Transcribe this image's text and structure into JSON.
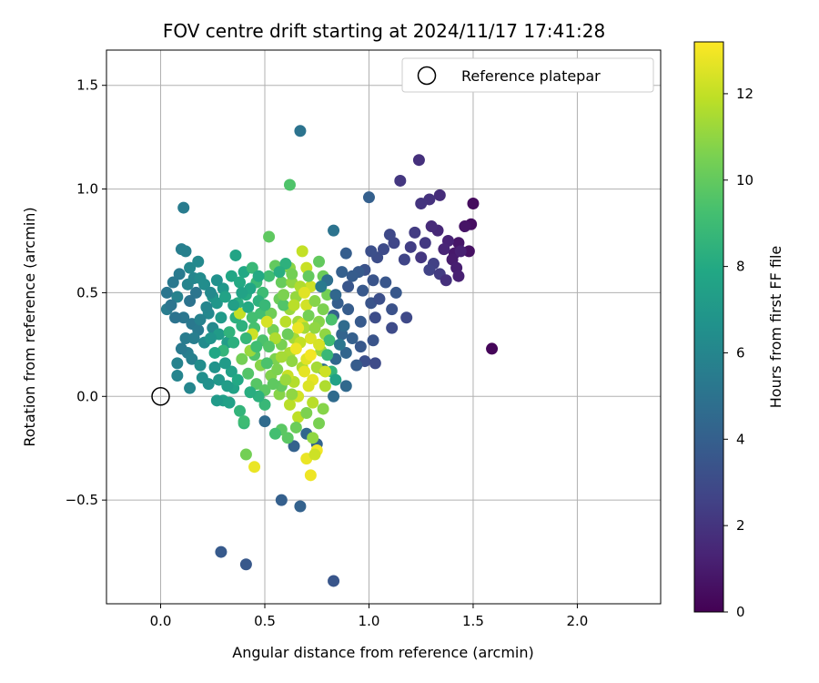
{
  "chart_data": {
    "type": "scatter",
    "title": "FOV centre drift starting at 2024/11/17 17:41:28",
    "xlabel": "Angular distance from reference (arcmin)",
    "ylabel": "Rotation from reference (arcmin)",
    "xlim": [
      -0.26,
      2.4
    ],
    "ylim": [
      -1.0,
      1.67
    ],
    "xticks": [
      0.0,
      0.5,
      1.0,
      1.5,
      2.0
    ],
    "xtick_labels": [
      "0.0",
      "0.5",
      "1.0",
      "1.5",
      "2.0"
    ],
    "yticks": [
      -0.5,
      0.0,
      0.5,
      1.0,
      1.5
    ],
    "ytick_labels": [
      "−0.5",
      "0.0",
      "0.5",
      "1.0",
      "1.5"
    ],
    "grid": true,
    "legend": {
      "position": "upper-right",
      "entries": [
        "Reference platepar"
      ]
    },
    "reference_point": {
      "x": 0.0,
      "y": 0.0,
      "label": "Reference platepar",
      "marker": "open-circle"
    },
    "colorbar": {
      "label": "Hours from first FF file",
      "range": [
        0,
        13.2
      ],
      "ticks": [
        0,
        2,
        4,
        6,
        8,
        10,
        12
      ],
      "tick_labels": [
        "0",
        "2",
        "4",
        "6",
        "8",
        "10",
        "12"
      ],
      "colormap": "viridis"
    },
    "points": [
      [
        1.59,
        0.23,
        0.2
      ],
      [
        1.5,
        0.93,
        0.4
      ],
      [
        1.49,
        0.83,
        0.5
      ],
      [
        1.46,
        0.82,
        0.7
      ],
      [
        1.43,
        0.74,
        0.8
      ],
      [
        1.48,
        0.7,
        0.6
      ],
      [
        1.41,
        0.69,
        0.9
      ],
      [
        1.4,
        0.66,
        1.0
      ],
      [
        1.42,
        0.62,
        1.1
      ],
      [
        1.44,
        0.7,
        1.2
      ],
      [
        1.38,
        0.75,
        1.3
      ],
      [
        1.36,
        0.71,
        1.4
      ],
      [
        1.33,
        0.8,
        1.5
      ],
      [
        1.3,
        0.82,
        1.6
      ],
      [
        1.24,
        1.14,
        1.8
      ],
      [
        1.34,
        0.97,
        1.7
      ],
      [
        1.29,
        0.95,
        1.9
      ],
      [
        1.25,
        0.93,
        2.0
      ],
      [
        1.15,
        1.04,
        2.1
      ],
      [
        1.27,
        0.74,
        2.2
      ],
      [
        1.22,
        0.79,
        2.3
      ],
      [
        1.2,
        0.72,
        2.4
      ],
      [
        1.31,
        0.64,
        2.5
      ],
      [
        1.29,
        0.61,
        2.6
      ],
      [
        1.34,
        0.59,
        2.3
      ],
      [
        1.43,
        0.58,
        1.2
      ],
      [
        1.25,
        0.67,
        2.1
      ],
      [
        1.37,
        0.56,
        1.8
      ],
      [
        1.17,
        0.66,
        2.7
      ],
      [
        1.12,
        0.74,
        2.8
      ],
      [
        1.1,
        0.78,
        2.9
      ],
      [
        1.07,
        0.71,
        3.0
      ],
      [
        1.04,
        0.67,
        3.1
      ],
      [
        1.01,
        0.7,
        3.2
      ],
      [
        0.98,
        0.61,
        3.3
      ],
      [
        1.02,
        0.56,
        3.4
      ],
      [
        1.08,
        0.55,
        3.5
      ],
      [
        1.13,
        0.5,
        3.6
      ],
      [
        0.95,
        0.6,
        3.7
      ],
      [
        0.92,
        0.58,
        3.8
      ],
      [
        0.89,
        0.69,
        3.9
      ],
      [
        0.87,
        0.6,
        4.0
      ],
      [
        0.9,
        0.53,
        3.5
      ],
      [
        0.97,
        0.51,
        3.6
      ],
      [
        1.01,
        0.45,
        3.4
      ],
      [
        1.05,
        0.47,
        3.2
      ],
      [
        1.11,
        0.42,
        3.3
      ],
      [
        1.18,
        0.38,
        2.9
      ],
      [
        1.11,
        0.33,
        3.0
      ],
      [
        1.03,
        0.38,
        3.1
      ],
      [
        0.96,
        0.36,
        3.7
      ],
      [
        0.9,
        0.42,
        3.8
      ],
      [
        0.85,
        0.45,
        3.9
      ],
      [
        0.83,
        0.39,
        4.1
      ],
      [
        0.87,
        0.3,
        4.2
      ],
      [
        0.92,
        0.28,
        4.0
      ],
      [
        0.96,
        0.24,
        3.6
      ],
      [
        1.02,
        0.27,
        3.4
      ],
      [
        0.98,
        0.17,
        3.2
      ],
      [
        1.03,
        0.16,
        3.0
      ],
      [
        0.94,
        0.15,
        3.8
      ],
      [
        0.89,
        0.21,
        4.3
      ],
      [
        0.84,
        0.18,
        4.4
      ],
      [
        0.89,
        0.05,
        4.5
      ],
      [
        0.83,
        0.0,
        4.6
      ],
      [
        0.78,
        0.13,
        4.7
      ],
      [
        0.75,
        -0.23,
        4.2
      ],
      [
        0.7,
        -0.18,
        4.4
      ],
      [
        0.64,
        -0.24,
        4.1
      ],
      [
        0.58,
        -0.5,
        4.0
      ],
      [
        0.67,
        -0.53,
        4.1
      ],
      [
        0.5,
        -0.12,
        4.6
      ],
      [
        0.83,
        -0.89,
        3.5
      ],
      [
        0.41,
        -0.81,
        3.6
      ],
      [
        0.29,
        -0.75,
        3.7
      ],
      [
        0.67,
        1.28,
        5.0
      ],
      [
        1.0,
        0.96,
        4.0
      ],
      [
        0.83,
        0.8,
        5.0
      ],
      [
        0.11,
        0.91,
        5.5
      ],
      [
        0.1,
        0.71,
        5.6
      ],
      [
        0.12,
        0.7,
        5.7
      ],
      [
        0.09,
        0.59,
        5.4
      ],
      [
        0.06,
        0.55,
        5.3
      ],
      [
        0.03,
        0.5,
        5.2
      ],
      [
        0.03,
        0.42,
        5.5
      ],
      [
        0.08,
        0.48,
        5.8
      ],
      [
        0.13,
        0.54,
        5.9
      ],
      [
        0.16,
        0.57,
        6.0
      ],
      [
        0.14,
        0.62,
        6.1
      ],
      [
        0.18,
        0.65,
        6.2
      ],
      [
        0.19,
        0.57,
        6.3
      ],
      [
        0.21,
        0.54,
        6.4
      ],
      [
        0.17,
        0.5,
        5.1
      ],
      [
        0.14,
        0.46,
        5.0
      ],
      [
        0.11,
        0.38,
        5.2
      ],
      [
        0.15,
        0.35,
        5.3
      ],
      [
        0.18,
        0.32,
        5.4
      ],
      [
        0.12,
        0.28,
        5.5
      ],
      [
        0.13,
        0.21,
        5.6
      ],
      [
        0.15,
        0.18,
        5.7
      ],
      [
        0.08,
        0.16,
        5.8
      ],
      [
        0.08,
        0.1,
        5.9
      ],
      [
        0.14,
        0.04,
        6.0
      ],
      [
        0.23,
        0.4,
        6.1
      ],
      [
        0.25,
        0.33,
        6.2
      ],
      [
        0.21,
        0.26,
        6.3
      ],
      [
        0.19,
        0.15,
        6.4
      ],
      [
        0.2,
        0.09,
        6.5
      ],
      [
        0.23,
        0.06,
        6.6
      ],
      [
        0.26,
        0.14,
        6.7
      ],
      [
        0.25,
        0.48,
        6.8
      ],
      [
        0.27,
        0.45,
        6.9
      ],
      [
        0.3,
        0.52,
        7.0
      ],
      [
        0.29,
        0.38,
        7.1
      ],
      [
        0.28,
        0.3,
        7.2
      ],
      [
        0.32,
        0.26,
        7.3
      ],
      [
        0.3,
        -0.02,
        7.4
      ],
      [
        0.33,
        -0.03,
        7.5
      ],
      [
        0.35,
        0.04,
        7.6
      ],
      [
        0.36,
        0.68,
        7.7
      ],
      [
        0.34,
        0.58,
        7.8
      ],
      [
        0.4,
        0.6,
        7.9
      ],
      [
        0.38,
        0.55,
        8.0
      ],
      [
        0.41,
        0.49,
        8.1
      ],
      [
        0.37,
        0.45,
        8.2
      ],
      [
        0.36,
        0.38,
        8.3
      ],
      [
        0.39,
        0.34,
        8.4
      ],
      [
        0.33,
        0.31,
        8.5
      ],
      [
        0.38,
        -0.07,
        8.6
      ],
      [
        0.4,
        -0.13,
        8.7
      ],
      [
        0.44,
        0.62,
        8.8
      ],
      [
        0.46,
        0.55,
        8.9
      ],
      [
        0.49,
        0.5,
        9.0
      ],
      [
        0.52,
        0.58,
        9.1
      ],
      [
        0.48,
        0.4,
        9.2
      ],
      [
        0.45,
        0.33,
        9.3
      ],
      [
        0.49,
        0.27,
        9.4
      ],
      [
        0.45,
        0.2,
        9.5
      ],
      [
        0.42,
        0.11,
        9.6
      ],
      [
        0.46,
        0.06,
        9.7
      ],
      [
        0.5,
        0.03,
        9.8
      ],
      [
        0.52,
        0.77,
        9.9
      ],
      [
        0.55,
        0.63,
        10.0
      ],
      [
        0.58,
        0.55,
        10.1
      ],
      [
        0.57,
        0.47,
        10.2
      ],
      [
        0.53,
        0.4,
        10.3
      ],
      [
        0.54,
        0.32,
        10.4
      ],
      [
        0.58,
        0.25,
        10.5
      ],
      [
        0.55,
        0.18,
        10.6
      ],
      [
        0.53,
        0.1,
        10.7
      ],
      [
        0.57,
        0.01,
        10.8
      ],
      [
        0.62,
        1.02,
        9.5
      ],
      [
        0.62,
        0.62,
        10.9
      ],
      [
        0.63,
        0.55,
        11.0
      ],
      [
        0.65,
        0.48,
        11.1
      ],
      [
        0.62,
        0.42,
        11.2
      ],
      [
        0.66,
        0.36,
        11.3
      ],
      [
        0.64,
        0.28,
        11.4
      ],
      [
        0.62,
        0.21,
        11.5
      ],
      [
        0.68,
        0.14,
        11.6
      ],
      [
        0.64,
        0.07,
        11.7
      ],
      [
        0.62,
        -0.04,
        11.8
      ],
      [
        0.66,
        -0.1,
        11.9
      ],
      [
        0.68,
        0.7,
        12.0
      ],
      [
        0.7,
        0.62,
        12.1
      ],
      [
        0.72,
        0.53,
        12.2
      ],
      [
        0.7,
        0.44,
        12.3
      ],
      [
        0.68,
        0.35,
        12.4
      ],
      [
        0.72,
        0.28,
        12.5
      ],
      [
        0.7,
        0.18,
        12.6
      ],
      [
        0.73,
        0.08,
        12.7
      ],
      [
        0.7,
        -0.3,
        12.8
      ],
      [
        0.72,
        -0.38,
        12.9
      ],
      [
        0.75,
        -0.26,
        13.0
      ],
      [
        0.74,
        -0.28,
        12.2
      ],
      [
        0.76,
        0.65,
        10.0
      ],
      [
        0.78,
        0.58,
        10.2
      ],
      [
        0.8,
        0.49,
        10.4
      ],
      [
        0.78,
        0.42,
        10.6
      ],
      [
        0.76,
        0.36,
        10.8
      ],
      [
        0.79,
        0.3,
        11.0
      ],
      [
        0.77,
        0.22,
        11.2
      ],
      [
        0.75,
        0.14,
        11.4
      ],
      [
        0.79,
        0.05,
        11.6
      ],
      [
        0.73,
        -0.03,
        11.8
      ],
      [
        0.76,
        -0.13,
        10.5
      ],
      [
        0.78,
        -0.06,
        10.8
      ],
      [
        0.73,
        -0.2,
        11.0
      ],
      [
        0.58,
        -0.16,
        9.8
      ],
      [
        0.65,
        -0.15,
        10.2
      ],
      [
        0.58,
        0.05,
        10.0
      ],
      [
        0.41,
        -0.28,
        10.4
      ],
      [
        0.45,
        -0.34,
        12.8
      ],
      [
        0.4,
        -0.12,
        9.0
      ],
      [
        0.38,
        0.4,
        12.0
      ],
      [
        0.44,
        0.3,
        12.2
      ],
      [
        0.51,
        0.36,
        12.4
      ],
      [
        0.55,
        0.28,
        11.6
      ],
      [
        0.6,
        0.36,
        11.8
      ],
      [
        0.67,
        0.26,
        12.0
      ],
      [
        0.61,
        0.1,
        12.1
      ],
      [
        0.66,
        0.0,
        12.3
      ],
      [
        0.71,
        0.05,
        12.5
      ],
      [
        0.69,
        0.33,
        11.4
      ],
      [
        0.63,
        0.17,
        11.0
      ],
      [
        0.56,
        0.13,
        10.6
      ],
      [
        0.48,
        0.15,
        10.8
      ],
      [
        0.43,
        0.22,
        11.2
      ],
      [
        0.39,
        0.18,
        10.4
      ],
      [
        0.3,
        0.22,
        8.6
      ],
      [
        0.26,
        0.21,
        7.8
      ],
      [
        0.34,
        0.12,
        7.5
      ],
      [
        0.28,
        0.08,
        7.0
      ],
      [
        0.31,
        0.16,
        7.2
      ],
      [
        0.24,
        0.28,
        6.8
      ],
      [
        0.35,
        0.44,
        7.4
      ],
      [
        0.31,
        0.48,
        7.6
      ],
      [
        0.42,
        0.43,
        8.0
      ],
      [
        0.47,
        0.46,
        8.4
      ],
      [
        0.5,
        0.44,
        8.8
      ],
      [
        0.44,
        0.38,
        9.2
      ],
      [
        0.52,
        0.24,
        9.6
      ],
      [
        0.59,
        0.44,
        9.6
      ],
      [
        0.61,
        0.3,
        10.2
      ],
      [
        0.71,
        0.39,
        10.4
      ],
      [
        0.74,
        0.46,
        10.8
      ],
      [
        0.82,
        0.37,
        9.4
      ],
      [
        0.81,
        0.27,
        9.0
      ],
      [
        0.8,
        0.2,
        8.8
      ],
      [
        0.82,
        0.12,
        8.6
      ],
      [
        0.84,
        0.08,
        7.6
      ],
      [
        0.86,
        0.25,
        5.2
      ],
      [
        0.88,
        0.34,
        4.6
      ],
      [
        0.84,
        0.49,
        4.4
      ],
      [
        0.8,
        0.56,
        4.8
      ],
      [
        0.77,
        0.53,
        5.4
      ],
      [
        0.6,
        0.64,
        8.4
      ],
      [
        0.57,
        0.6,
        8.2
      ],
      [
        0.47,
        0.58,
        8.0
      ],
      [
        0.43,
        0.52,
        7.8
      ],
      [
        0.39,
        0.5,
        7.6
      ],
      [
        0.27,
        0.56,
        6.6
      ],
      [
        0.24,
        0.5,
        6.2
      ],
      [
        0.22,
        0.43,
        6.0
      ],
      [
        0.19,
        0.37,
        5.8
      ],
      [
        0.16,
        0.28,
        5.6
      ],
      [
        0.1,
        0.23,
        5.4
      ],
      [
        0.07,
        0.38,
        5.0
      ],
      [
        0.05,
        0.44,
        5.1
      ],
      [
        0.67,
        0.53,
        11.6
      ],
      [
        0.64,
        0.44,
        11.8
      ],
      [
        0.69,
        0.5,
        12.6
      ],
      [
        0.72,
        0.2,
        13.0
      ],
      [
        0.65,
        0.23,
        12.9
      ],
      [
        0.69,
        0.12,
        12.7
      ],
      [
        0.66,
        0.33,
        12.8
      ],
      [
        0.58,
        0.19,
        11.4
      ],
      [
        0.6,
        0.08,
        11.2
      ],
      [
        0.63,
        0.01,
        11.0
      ],
      [
        0.7,
        -0.08,
        10.6
      ],
      [
        0.61,
        -0.2,
        9.8
      ],
      [
        0.55,
        -0.18,
        9.2
      ],
      [
        0.5,
        -0.04,
        8.8
      ],
      [
        0.47,
        0.0,
        8.4
      ],
      [
        0.43,
        0.02,
        8.2
      ],
      [
        0.37,
        0.08,
        7.9
      ],
      [
        0.32,
        0.05,
        7.3
      ],
      [
        0.27,
        -0.02,
        7.1
      ],
      [
        0.35,
        0.26,
        8.3
      ],
      [
        0.41,
        0.28,
        8.7
      ],
      [
        0.46,
        0.24,
        9.1
      ],
      [
        0.51,
        0.16,
        9.4
      ],
      [
        0.54,
        0.06,
        9.9
      ],
      [
        0.59,
        0.49,
        10.6
      ],
      [
        0.63,
        0.59,
        10.4
      ],
      [
        0.71,
        0.58,
        10.0
      ],
      [
        0.74,
        0.33,
        11.0
      ],
      [
        0.76,
        0.25,
        12.4
      ],
      [
        0.79,
        0.12,
        12.2
      ]
    ]
  }
}
